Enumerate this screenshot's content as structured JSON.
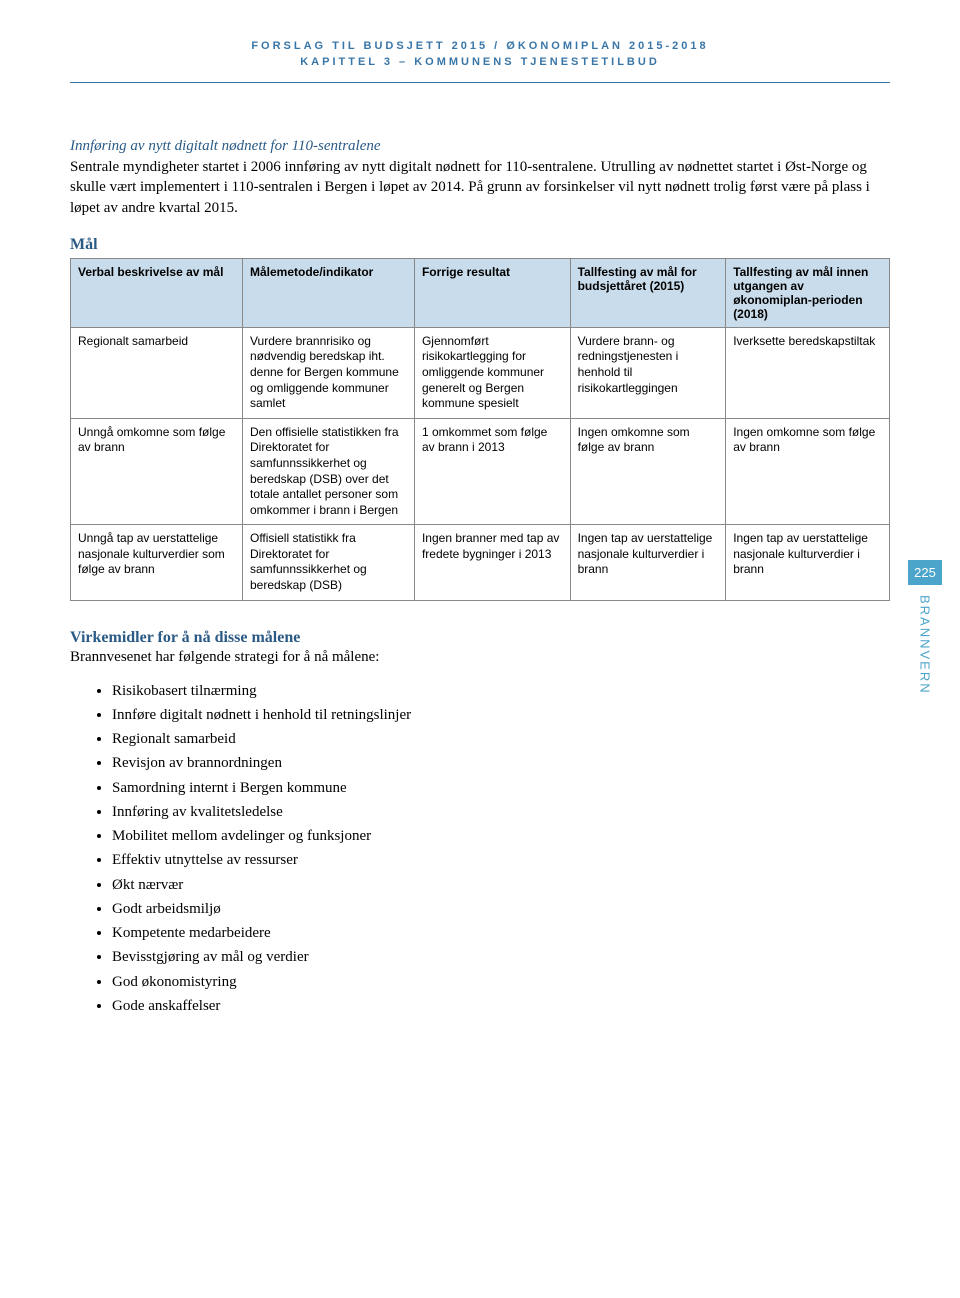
{
  "header": {
    "line1": "FORSLAG TIL BUDSJETT 2015 / ØKONOMIPLAN 2015-2018",
    "line2": "KAPITTEL 3 – KOMMUNENS TJENESTETILBUD"
  },
  "section1": {
    "heading": "Innføring av nytt digitalt nødnett for 110-sentralene",
    "para": "Sentrale myndigheter startet i 2006 innføring av nytt digitalt nødnett for 110-sentralene. Utrulling av nødnettet startet i Øst-Norge og skulle vært implementert i 110-sentralen i Bergen i løpet av 2014. På grunn av forsinkelser vil nytt nødnett trolig først være på plass i løpet av andre kvartal 2015."
  },
  "mal_heading": "Mål",
  "table": {
    "columns": [
      "Verbal beskrivelse av mål",
      "Målemetode/indikator",
      "Forrige resultat",
      "Tallfesting av mål for budsjettåret (2015)",
      "Tallfesting av mål innen utgangen av økonomiplan-perioden (2018)"
    ],
    "widths": [
      "21%",
      "21%",
      "19%",
      "19%",
      "20%"
    ],
    "header_bg": "#c8dceb",
    "border_color": "#888888",
    "rows": [
      [
        "Regionalt samarbeid",
        "Vurdere brannrisiko og nødvendig beredskap iht. denne for Bergen kommune og omliggende kommuner samlet",
        "Gjennomført risikokartlegging for omliggende kommuner generelt og Bergen kommune spesielt",
        "Vurdere brann- og redningstjenesten i henhold til risikokartleggingen",
        "Iverksette beredskapstiltak"
      ],
      [
        "Unngå omkomne som følge av brann",
        "Den offisielle statistikken fra Direktoratet for samfunnssikkerhet og beredskap (DSB) over det totale antallet personer som omkommer i brann i Bergen",
        "1 omkommet som følge av brann i 2013",
        "Ingen omkomne som følge av brann",
        "Ingen omkomne som følge av brann"
      ],
      [
        "Unngå tap av uerstattelige nasjonale kulturverdier som følge av brann",
        "Offisiell statistikk fra Direktoratet for samfunnssikkerhet og beredskap (DSB)",
        "Ingen branner med tap av fredete bygninger i 2013",
        "Ingen tap av uerstattelige nasjonale kulturverdier i brann",
        "Ingen tap av uerstattelige nasjonale kulturverdier i brann"
      ]
    ]
  },
  "section2": {
    "heading": "Virkemidler for å nå disse målene",
    "intro": "Brannvesenet har følgende strategi for å nå målene:",
    "bullets": [
      "Risikobasert tilnærming",
      "Innføre digitalt nødnett i henhold til retningslinjer",
      "Regionalt samarbeid",
      "Revisjon av brannordningen",
      "Samordning internt i Bergen kommune",
      "Innføring av kvalitetsledelse",
      "Mobilitet mellom avdelinger og funksjoner",
      "Effektiv utnyttelse av ressurser",
      "Økt nærvær",
      "Godt arbeidsmiljø",
      "Kompetente medarbeidere",
      "Bevisstgjøring av mål og verdier",
      "God økonomistyring",
      "Gode anskaffelser"
    ]
  },
  "side": {
    "page_number": "225",
    "section_label": "BRANNVERN",
    "tab_bg": "#4ba4c9",
    "tab_color": "#4ba4c9"
  },
  "colors": {
    "header_text": "#3976a8",
    "heading_text": "#2a5a85",
    "rule": "#3976a8"
  }
}
